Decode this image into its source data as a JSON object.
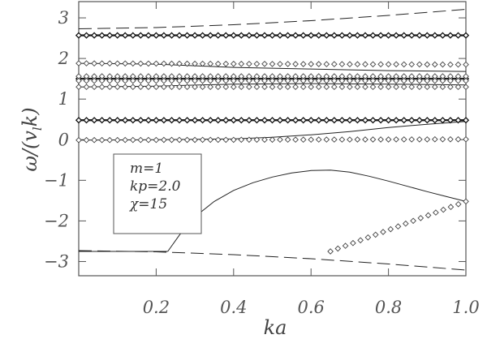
{
  "chart_data": {
    "type": "line",
    "xlabel": "ka",
    "ylabel": "ω/(v_l k)",
    "ylabel_parts": {
      "omega": "ω",
      "slash": "/",
      "open": "(",
      "v": "v",
      "sub": "l",
      "k": "k",
      "close": ")"
    },
    "xlim": [
      0.0,
      1.0
    ],
    "ylim": [
      -3.35,
      3.4
    ],
    "x_ticks": [
      0.2,
      0.4,
      0.6,
      0.8,
      1.0
    ],
    "x_tick_labels": [
      "0.2",
      "0.4",
      "0.6",
      "0.8",
      "1.0"
    ],
    "y_ticks": [
      -3,
      -2,
      -1,
      0,
      1,
      2,
      3
    ],
    "y_tick_labels": [
      "−3",
      "−2",
      "−1",
      "0",
      "1",
      "2",
      "3"
    ],
    "legend": {
      "placement": "center-left",
      "lines": [
        "m=1",
        "kp=2.0",
        "χ=15"
      ]
    },
    "series": [
      {
        "style": "dashed",
        "x": [
          0.0,
          0.2,
          0.4,
          0.6,
          0.8,
          1.0
        ],
        "y": [
          2.73,
          2.76,
          2.83,
          2.93,
          3.06,
          3.21
        ]
      },
      {
        "style": "dashed",
        "x": [
          0.0,
          0.2,
          0.4,
          0.6,
          0.8,
          1.0
        ],
        "y": [
          -2.73,
          -2.76,
          -2.83,
          -2.93,
          -3.06,
          -3.21
        ]
      },
      {
        "style": "solid",
        "x": [
          0.0,
          0.2,
          0.4,
          0.6,
          0.8,
          1.0
        ],
        "y": [
          1.88,
          1.86,
          1.78,
          1.74,
          1.7,
          1.68
        ]
      },
      {
        "style": "solid",
        "x": [
          0.0,
          0.2,
          0.4,
          0.6,
          0.8,
          1.0
        ],
        "y": [
          1.3,
          1.32,
          1.37,
          1.38,
          1.37,
          1.35
        ]
      },
      {
        "style": "solid",
        "x": [
          0.0,
          0.2,
          0.4,
          0.5,
          0.6,
          0.7,
          0.8,
          0.9,
          1.0
        ],
        "y": [
          -0.01,
          0.0,
          0.02,
          0.06,
          0.12,
          0.2,
          0.3,
          0.38,
          0.45
        ]
      },
      {
        "style": "solid",
        "x": [
          0.0,
          0.23
        ],
        "y": [
          -2.75,
          -2.75
        ]
      },
      {
        "style": "solid",
        "x": [
          0.23,
          0.26,
          0.3,
          0.35,
          0.4,
          0.45,
          0.5,
          0.55,
          0.6,
          0.65,
          0.7,
          0.75,
          0.8,
          0.85,
          0.9,
          0.95,
          1.0
        ],
        "y": [
          -2.75,
          -2.35,
          -1.9,
          -1.52,
          -1.25,
          -1.06,
          -0.92,
          -0.82,
          -0.76,
          -0.75,
          -0.8,
          -0.9,
          -1.02,
          -1.15,
          -1.28,
          -1.4,
          -1.52
        ]
      },
      {
        "style": "solid",
        "x": [
          0.0,
          1.0
        ],
        "y": [
          2.57,
          2.57
        ]
      },
      {
        "style": "solid",
        "x": [
          0.0,
          1.0
        ],
        "y": [
          1.5,
          1.5
        ]
      },
      {
        "style": "solid",
        "x": [
          0.0,
          1.0
        ],
        "y": [
          0.48,
          0.48
        ]
      },
      {
        "style": "diamond",
        "x_start": 0.0,
        "x_end": 1.0,
        "y": [
          2.57,
          2.57
        ]
      },
      {
        "style": "diamond",
        "x_start": 0.0,
        "x_end": 1.0,
        "y": [
          1.5,
          1.5
        ]
      },
      {
        "style": "diamond",
        "x_start": 0.0,
        "x_end": 1.0,
        "y": [
          1.56,
          1.56
        ]
      },
      {
        "style": "diamond",
        "x_start": 0.0,
        "x_end": 1.0,
        "y": [
          1.45,
          1.45
        ]
      },
      {
        "style": "diamond",
        "x_start": 0.0,
        "x_end": 1.0,
        "y": [
          0.48,
          0.48
        ]
      },
      {
        "style": "diamond",
        "x_start": 0.0,
        "x_end": 1.0,
        "y": [
          1.88,
          1.85
        ]
      },
      {
        "style": "diamond",
        "x_start": 0.0,
        "x_end": 1.0,
        "y": [
          1.3,
          1.3
        ]
      },
      {
        "style": "diamond",
        "x_start": 0.0,
        "x_end": 1.0,
        "y": [
          -0.01,
          0.01
        ]
      },
      {
        "style": "diamond",
        "x_start": 0.65,
        "x_end": 1.0,
        "y": [
          -2.75,
          -1.52
        ]
      }
    ]
  }
}
